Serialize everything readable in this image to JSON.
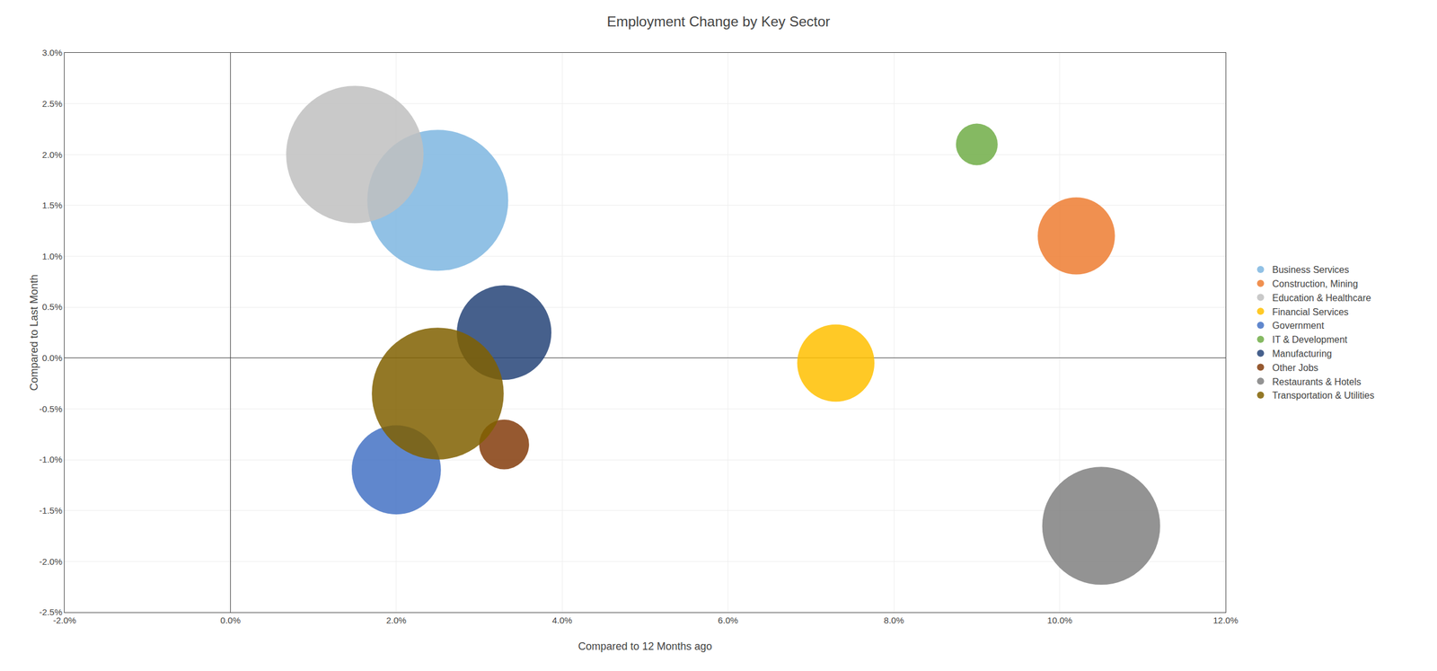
{
  "chart_data": {
    "type": "bubble",
    "title": "Employment Change by Key Sector",
    "xlabel": "Compared to 12 Months ago",
    "ylabel": "Compared to Last Month",
    "series": [
      {
        "name": "Business Services",
        "x": [
          2.5
        ],
        "y": [
          1.55
        ],
        "size": [
          40000
        ],
        "color": "#7EB6E0"
      },
      {
        "name": "Construction, Mining",
        "x": [
          10.2
        ],
        "y": [
          1.2
        ],
        "size": [
          12000
        ],
        "color": "#ED7D31"
      },
      {
        "name": "Education & Healthcare",
        "x": [
          1.5
        ],
        "y": [
          2.0
        ],
        "size": [
          38000
        ],
        "color": "#BFBFBF"
      },
      {
        "name": "Financial Services",
        "x": [
          7.3
        ],
        "y": [
          -0.05
        ],
        "size": [
          12000
        ],
        "color": "#FFC000"
      },
      {
        "name": "Government",
        "x": [
          2.0
        ],
        "y": [
          -1.1
        ],
        "size": [
          16000
        ],
        "color": "#4472C4"
      },
      {
        "name": "IT & Development",
        "x": [
          9.0
        ],
        "y": [
          2.1
        ],
        "size": [
          3500
        ],
        "color": "#70AD47"
      },
      {
        "name": "Manufacturing",
        "x": [
          3.3
        ],
        "y": [
          0.25
        ],
        "size": [
          18000
        ],
        "color": "#264478"
      },
      {
        "name": "Other Jobs",
        "x": [
          3.3
        ],
        "y": [
          -0.85
        ],
        "size": [
          5000
        ],
        "color": "#843C0C"
      },
      {
        "name": "Restaurants & Hotels",
        "x": [
          10.5
        ],
        "y": [
          -1.65
        ],
        "size": [
          28000
        ],
        "color": "#808080"
      },
      {
        "name": "Transportation & Utilities",
        "x": [
          2.5
        ],
        "y": [
          -0.35
        ],
        "size": [
          35000
        ],
        "color": "#806000"
      }
    ],
    "xlim": [
      -2.0,
      12.0
    ],
    "xticks": [
      {
        "value": -2.0,
        "label": "-2.0%"
      },
      {
        "value": 0.0,
        "label": "0.0%"
      },
      {
        "value": 2.0,
        "label": "2.0%"
      },
      {
        "value": 4.0,
        "label": "4.0%"
      },
      {
        "value": 6.0,
        "label": "6.0%"
      },
      {
        "value": 8.0,
        "label": "8.0%"
      },
      {
        "value": 10.0,
        "label": "10.0%"
      },
      {
        "value": 12.0,
        "label": "12.0%"
      }
    ],
    "ylim": [
      -2.5,
      3.0
    ],
    "yticks": [
      {
        "value": -2.5,
        "label": "-2.5%"
      },
      {
        "value": -2.0,
        "label": "-2.0%"
      },
      {
        "value": -1.5,
        "label": "-1.5%"
      },
      {
        "value": -1.0,
        "label": "-1.0%"
      },
      {
        "value": -0.5,
        "label": "-0.5%"
      },
      {
        "value": 0.0,
        "label": "0.0%"
      },
      {
        "value": 0.5,
        "label": "0.5%"
      },
      {
        "value": 1.0,
        "label": "1.0%"
      },
      {
        "value": 1.5,
        "label": "1.5%"
      },
      {
        "value": 2.0,
        "label": "2.0%"
      },
      {
        "value": 2.5,
        "label": "2.5%"
      },
      {
        "value": 3.0,
        "label": "3.0%"
      }
    ],
    "grid": true,
    "legend": "right"
  }
}
